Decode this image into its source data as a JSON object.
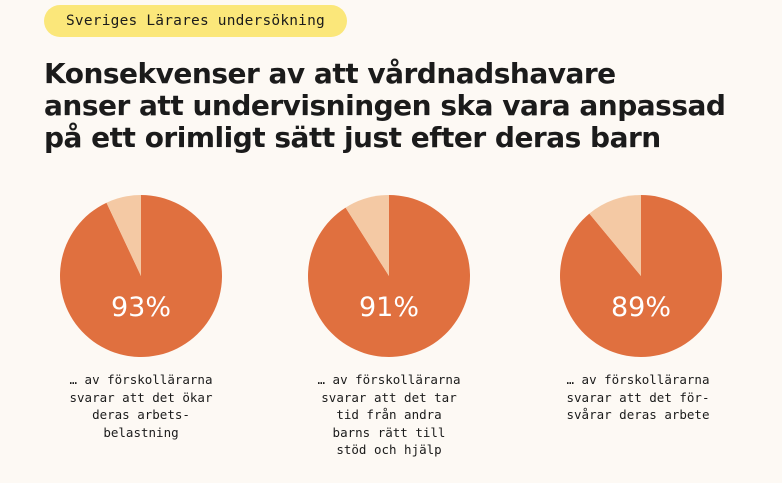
{
  "tag": "Sveriges Lärares undersökning",
  "title_lines": [
    "Konsekvenser av att vårdnadshavare",
    "anser att undervisningen ska vara anpassad",
    "på ett orimligt sätt just efter deras barn"
  ],
  "colors": {
    "slice_main": "#e0703f",
    "slice_rest": "#f4c9a4",
    "tag_bg": "#fbe77a",
    "background": "#fdf9f4"
  },
  "chart_data": [
    {
      "type": "pie",
      "label": "93%",
      "values": [
        93,
        7
      ],
      "caption": "… av förskollärarna\nsvarar att det ökar\nderas arbets-\nbelastning"
    },
    {
      "type": "pie",
      "label": "91%",
      "values": [
        91,
        9
      ],
      "caption": "… av förskollärarna\nsvarar att det tar\ntid från andra\nbarns rätt till\nstöd och hjälp"
    },
    {
      "type": "pie",
      "label": "89%",
      "values": [
        89,
        11
      ],
      "caption": "… av förskollärarna\nsvarar att det för-\nsvårar deras arbete"
    }
  ]
}
